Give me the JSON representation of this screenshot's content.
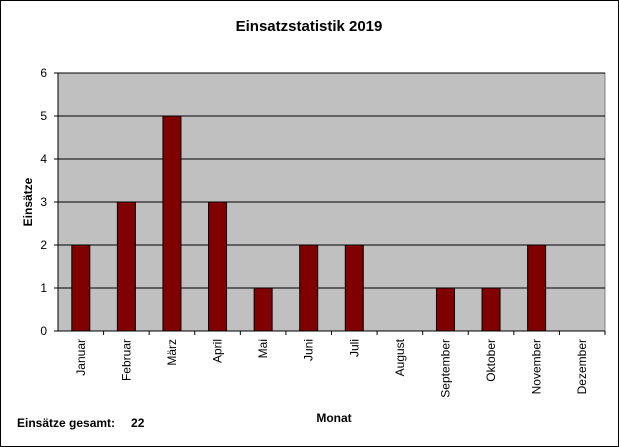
{
  "chart_data": {
    "type": "bar",
    "title": "Einsatzstatistik 2019",
    "xlabel": "Monat",
    "ylabel": "Einsätze",
    "categories": [
      "Januar",
      "Februar",
      "März",
      "April",
      "Mai",
      "Juni",
      "Juli",
      "August",
      "September",
      "Oktober",
      "November",
      "Dezember"
    ],
    "values": [
      2,
      3,
      5,
      3,
      1,
      2,
      2,
      0,
      1,
      1,
      2,
      0
    ],
    "ylim": [
      0,
      6
    ],
    "yticks": [
      "0",
      "1",
      "2",
      "3",
      "4",
      "5",
      "6"
    ],
    "grid": true,
    "legend": "none",
    "colors": {
      "bar": "#800000",
      "plot_background": "#c0c0c0",
      "gridline": "#000000"
    }
  },
  "summary": {
    "label": "Einsätze gesamt:",
    "value": "22"
  }
}
